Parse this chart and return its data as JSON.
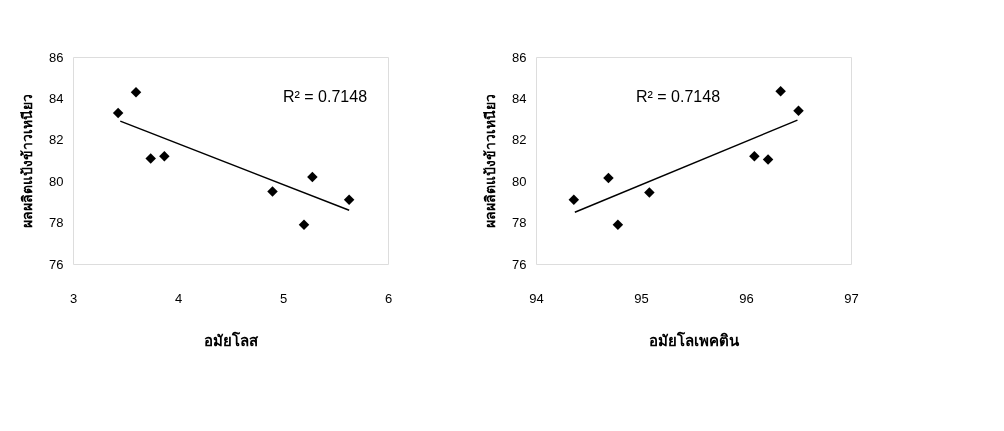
{
  "chart_data": [
    {
      "type": "scatter",
      "xlabel": "อมัยโลส",
      "ylabel": "ผลผลิตแป้งข้าวเหนียว",
      "xlim": [
        3,
        6
      ],
      "xticks": [
        3,
        4,
        5,
        6
      ],
      "ylim": [
        76,
        86
      ],
      "yticks": [
        76,
        78,
        80,
        82,
        84,
        86
      ],
      "grid": false,
      "annotations": [
        "R² = 0.7148"
      ],
      "series": [
        {
          "color": "#000000",
          "marker": "diamond",
          "x": [
            3.43,
            3.6,
            3.74,
            3.87,
            4.9,
            5.28,
            5.2,
            5.63
          ],
          "values": [
            83.3,
            84.3,
            81.1,
            81.2,
            79.5,
            80.2,
            77.9,
            79.1
          ]
        },
        {
          "type": "line",
          "color": "#000000",
          "x": [
            3.45,
            5.63
          ],
          "values": [
            82.9,
            78.6
          ]
        }
      ]
    },
    {
      "type": "scatter",
      "xlabel": "อมัยโลเพคติน",
      "ylabel": "ผลผลิตแป้งข้าวเหนียว",
      "xlim": [
        94,
        97
      ],
      "xticks": [
        94,
        95,
        96,
        97
      ],
      "ylim": [
        76,
        86
      ],
      "yticks": [
        76,
        78,
        80,
        82,
        84,
        86
      ],
      "grid": false,
      "annotations": [
        "R² = 0.7148"
      ],
      "series": [
        {
          "color": "#000000",
          "marker": "diamond",
          "x": [
            94.36,
            94.69,
            94.78,
            95.08,
            96.08,
            96.21,
            96.33,
            96.5
          ],
          "values": [
            79.1,
            80.15,
            77.9,
            79.45,
            81.2,
            81.05,
            84.35,
            83.4
          ]
        },
        {
          "type": "line",
          "color": "#000000",
          "x": [
            94.37,
            96.49
          ],
          "values": [
            78.5,
            82.95
          ]
        }
      ]
    }
  ]
}
